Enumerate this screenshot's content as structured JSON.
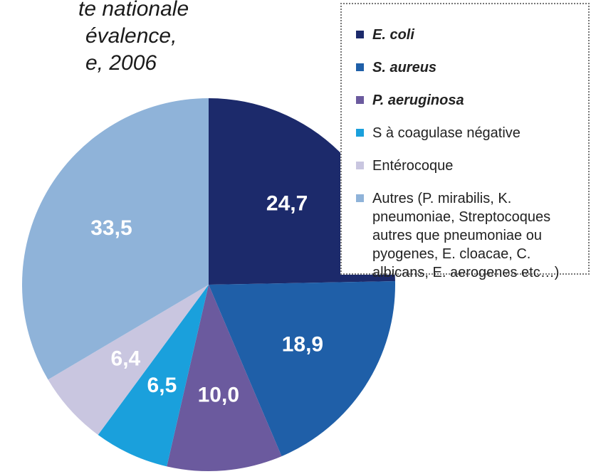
{
  "chart_data": {
    "type": "pie",
    "title_lines": [
      "te nationale",
      "évalence,",
      "e, 2006"
    ],
    "categories": [
      "E. coli",
      "S. aureus",
      "P. aeruginosa",
      "S à coagulase négative",
      "Entérocoque",
      "Autres (P. mirabilis, K. pneumoniae, Streptocoques autres que pneumoniae ou pyogenes, E. cloacae, C. albicans, E. aerogenes etc…)"
    ],
    "values": [
      24.7,
      18.9,
      10.0,
      6.5,
      6.4,
      33.5
    ],
    "value_labels": [
      "24,7",
      "18,9",
      "10,0",
      "6,5",
      "6,4",
      "33,5"
    ],
    "colors": [
      "#1c2a6b",
      "#1f5fa8",
      "#6b5a9e",
      "#1aa0dc",
      "#c9c6e0",
      "#8fb3d9"
    ],
    "legend": "top-right"
  }
}
